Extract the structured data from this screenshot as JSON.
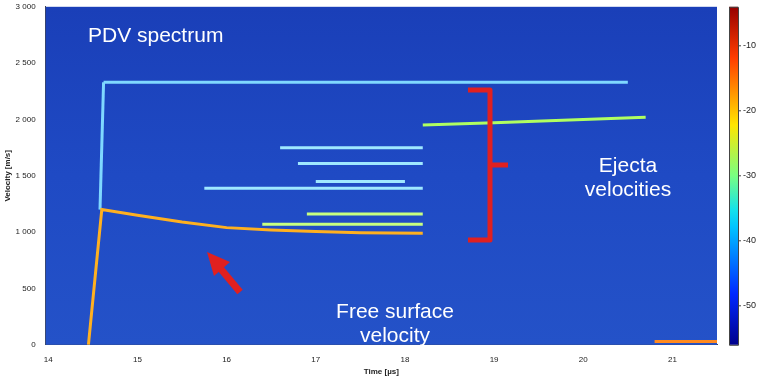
{
  "chart_data": {
    "type": "line",
    "x_label": "Time [µs]",
    "y_label": "Velocity [m/s]",
    "xlim": [
      13.97,
      21.5
    ],
    "ylim": [
      0,
      3000
    ],
    "xticks": [
      14,
      15,
      16,
      17,
      18,
      19,
      20,
      21
    ],
    "yticks": [
      0,
      500,
      {
        "value": 1000,
        "label": "1 000"
      },
      {
        "value": 1500,
        "label": "1 500"
      },
      {
        "value": 2000,
        "label": "2 000"
      },
      {
        "value": 2500,
        "label": "2 500"
      },
      {
        "value": 3000,
        "label": "3 000"
      }
    ],
    "grid": false,
    "annotations": [
      "PDV spectrum",
      "Ejecta velocities",
      "Free surface velocity"
    ],
    "colorbar": {
      "range": [
        -56,
        -4
      ],
      "ticks": [
        -10,
        -20,
        -30,
        -40,
        -50
      ]
    },
    "series": [
      {
        "color": "#ffb020",
        "x": [
          14.45,
          14.6,
          15.0,
          15.5,
          16.0,
          16.5,
          17.0,
          17.5,
          18.2
        ],
        "values": [
          0,
          1200,
          1150,
          1090,
          1040,
          1020,
          1005,
          995,
          990
        ]
      },
      {
        "color": "#7fd8ff",
        "x": [
          14.58,
          14.62
        ],
        "values": [
          1200,
          2330
        ]
      },
      {
        "color": "#7fd8ff",
        "x": [
          14.62,
          20.5
        ],
        "values": [
          2330,
          2330
        ]
      },
      {
        "color": "#b0ff60",
        "x": [
          18.2,
          19.0,
          20.0,
          20.7
        ],
        "values": [
          1950,
          1970,
          2000,
          2020
        ]
      },
      {
        "color": "#9fe8ff",
        "x": [
          16.6,
          18.2
        ],
        "values": [
          1750,
          1750
        ]
      },
      {
        "color": "#9fe8ff",
        "x": [
          16.8,
          18.2
        ],
        "values": [
          1610,
          1610
        ]
      },
      {
        "color": "#9fe8ff",
        "x": [
          17.0,
          18.0
        ],
        "values": [
          1450,
          1450
        ]
      },
      {
        "color": "#9fe8ff",
        "x": [
          15.75,
          18.2
        ],
        "values": [
          1390,
          1390
        ]
      },
      {
        "color": "#c8ff80",
        "x": [
          16.9,
          18.2
        ],
        "values": [
          1160,
          1160
        ]
      },
      {
        "color": "#c8ff80",
        "x": [
          16.4,
          18.2
        ],
        "values": [
          1070,
          1070
        ]
      },
      {
        "color": "#ff8a20",
        "x": [
          20.8,
          21.5
        ],
        "values": [
          30,
          30
        ]
      }
    ]
  }
}
